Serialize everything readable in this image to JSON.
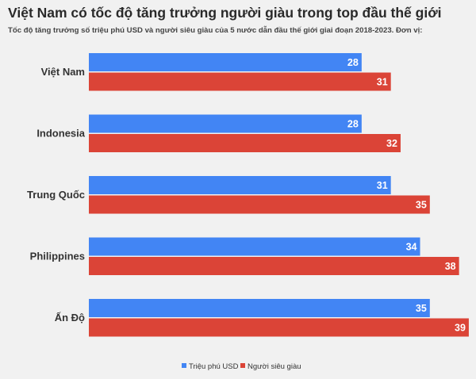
{
  "title": "Việt Nam có tốc độ tăng trưởng người giàu trong top đầu thế giới",
  "subtitle": "Tốc độ tăng trưởng số triệu phú USD và người siêu giàu của 5 nước dẫn đầu thế giới giai đoạn 2018-2023. Đơn vị:",
  "chart_data": {
    "type": "bar",
    "orientation": "horizontal",
    "categories": [
      "Việt Nam",
      "Indonesia",
      "Trung Quốc",
      "Philippines",
      "Ấn Độ"
    ],
    "series": [
      {
        "name": "Triệu phú USD",
        "values": [
          28,
          28,
          31,
          34,
          35
        ],
        "color": "#4285f4"
      },
      {
        "name": "Người siêu giàu",
        "values": [
          31,
          32,
          35,
          38,
          39
        ],
        "color": "#db4437"
      }
    ],
    "legend_position": "bottom-center",
    "grid": false
  }
}
